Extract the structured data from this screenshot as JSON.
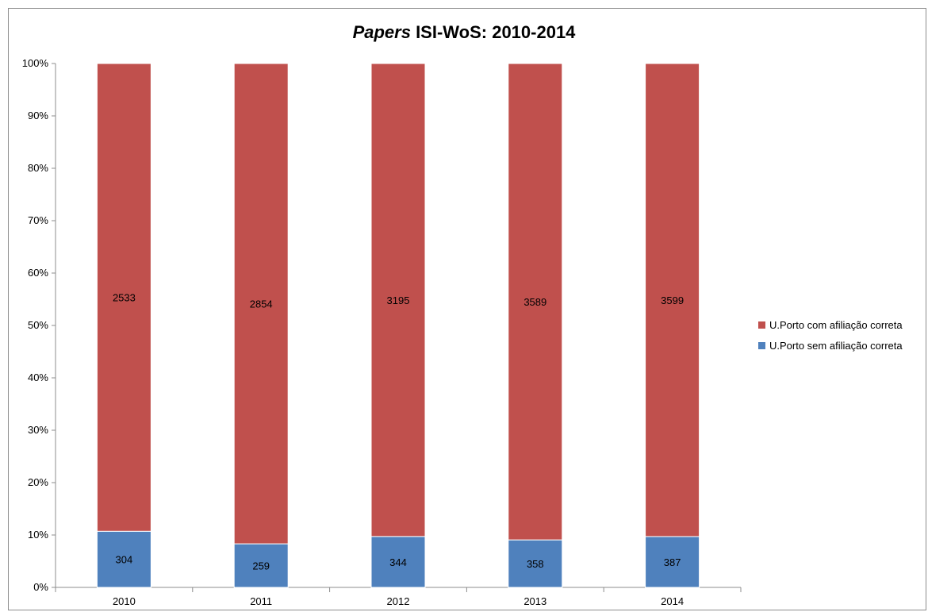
{
  "chart_data": {
    "type": "bar",
    "stacked": "percent",
    "title_italic": "Papers",
    "title_rest": " ISI-WoS: 2010-2014",
    "categories": [
      "2010",
      "2011",
      "2012",
      "2013",
      "2014"
    ],
    "series": [
      {
        "name": "U.Porto sem afiliação correta",
        "color": "#4f81bd",
        "values": [
          304,
          259,
          344,
          358,
          387
        ]
      },
      {
        "name": "U.Porto com afiliação correta",
        "color": "#c0504d",
        "values": [
          2533,
          2854,
          3195,
          3589,
          3599
        ]
      }
    ],
    "y_ticks": [
      "0%",
      "10%",
      "20%",
      "30%",
      "40%",
      "50%",
      "60%",
      "70%",
      "80%",
      "90%",
      "100%"
    ],
    "ylim": [
      0,
      100
    ],
    "grid": false,
    "legend_position": "right"
  }
}
